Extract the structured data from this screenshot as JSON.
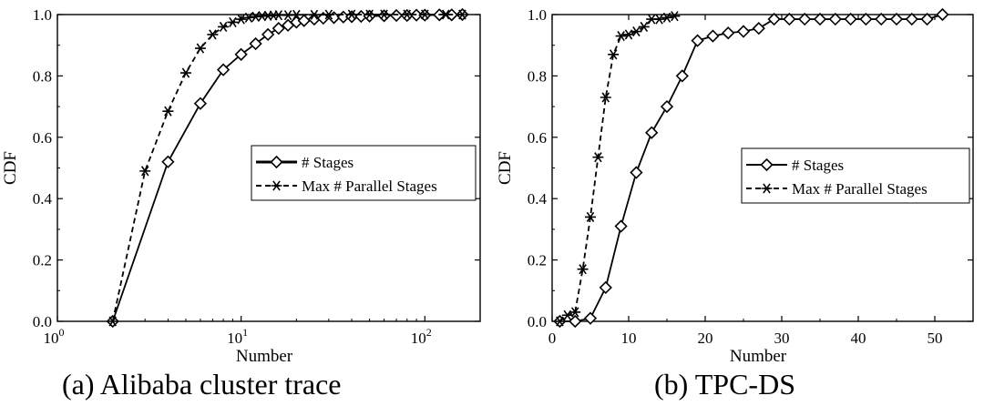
{
  "chart_data": [
    {
      "type": "line",
      "xscale": "log",
      "xlabel": "Number",
      "ylabel": "CDF",
      "xlim": [
        1,
        200
      ],
      "ylim": [
        0,
        1.0
      ],
      "xticks": [
        {
          "value": 1,
          "base": "10",
          "exp": "0"
        },
        {
          "value": 10,
          "base": "10",
          "exp": "1"
        },
        {
          "value": 100,
          "base": "10",
          "exp": "2"
        }
      ],
      "yticks": [
        "0.0",
        "0.2",
        "0.4",
        "0.6",
        "0.8",
        "1.0"
      ],
      "legend_position": "right",
      "series": [
        {
          "name": "# Stages",
          "marker": "diamond",
          "dash": "solid",
          "x": [
            2,
            4,
            6,
            8,
            10,
            12,
            14,
            16,
            18,
            20,
            22,
            25,
            28,
            32,
            36,
            40,
            45,
            50,
            60,
            70,
            80,
            90,
            100,
            120,
            140,
            160
          ],
          "y": [
            0.0,
            0.52,
            0.71,
            0.82,
            0.87,
            0.905,
            0.935,
            0.955,
            0.965,
            0.975,
            0.98,
            0.985,
            0.988,
            0.99,
            0.992,
            0.993,
            0.994,
            0.995,
            0.996,
            0.997,
            0.997,
            0.998,
            0.998,
            0.999,
            0.999,
            1.0
          ]
        },
        {
          "name": "Max # Parallel Stages",
          "marker": "asterisk",
          "dash": "dashed",
          "x": [
            2,
            3,
            4,
            5,
            6,
            7,
            8,
            9,
            10,
            11,
            12,
            13,
            14,
            15,
            16,
            18,
            20,
            25,
            30,
            40,
            50,
            60,
            80,
            100,
            130,
            160
          ],
          "y": [
            0.0,
            0.49,
            0.685,
            0.81,
            0.89,
            0.935,
            0.96,
            0.975,
            0.985,
            0.99,
            0.993,
            0.995,
            0.996,
            0.997,
            0.998,
            0.998,
            0.999,
            0.999,
            1.0,
            1.0,
            1.0,
            1.0,
            1.0,
            1.0,
            1.0,
            1.0
          ]
        }
      ]
    },
    {
      "type": "line",
      "xlabel": "Number",
      "ylabel": "CDF",
      "xlim": [
        0,
        55
      ],
      "ylim": [
        0,
        1.0
      ],
      "xticks": [
        {
          "value": 0,
          "label": "0"
        },
        {
          "value": 10,
          "label": "10"
        },
        {
          "value": 20,
          "label": "20"
        },
        {
          "value": 30,
          "label": "30"
        },
        {
          "value": 40,
          "label": "40"
        },
        {
          "value": 50,
          "label": "50"
        }
      ],
      "yticks": [
        "0.0",
        "0.2",
        "0.4",
        "0.6",
        "0.8",
        "1.0"
      ],
      "legend_position": "right",
      "series": [
        {
          "name": "# Stages",
          "marker": "diamond",
          "dash": "solid",
          "x": [
            1,
            3,
            5,
            7,
            9,
            11,
            13,
            15,
            17,
            19,
            21,
            23,
            25,
            27,
            29,
            31,
            33,
            35,
            37,
            39,
            41,
            43,
            45,
            47,
            49,
            51
          ],
          "y": [
            0.0,
            0.0,
            0.01,
            0.11,
            0.31,
            0.485,
            0.615,
            0.7,
            0.8,
            0.915,
            0.93,
            0.94,
            0.945,
            0.955,
            0.985,
            0.985,
            0.985,
            0.985,
            0.985,
            0.985,
            0.985,
            0.985,
            0.985,
            0.985,
            0.985,
            1.0
          ]
        },
        {
          "name": "Max # Parallel Stages",
          "marker": "asterisk",
          "dash": "dashed",
          "x": [
            1,
            2,
            3,
            4,
            5,
            6,
            7,
            8,
            9,
            10,
            11,
            12,
            13,
            14,
            15,
            16
          ],
          "y": [
            0.0,
            0.02,
            0.03,
            0.17,
            0.34,
            0.535,
            0.73,
            0.87,
            0.93,
            0.935,
            0.945,
            0.96,
            0.985,
            0.985,
            0.99,
            0.995
          ]
        }
      ]
    }
  ],
  "captions": {
    "a": "(a) Alibaba cluster trace",
    "b": "(b) TPC-DS"
  }
}
